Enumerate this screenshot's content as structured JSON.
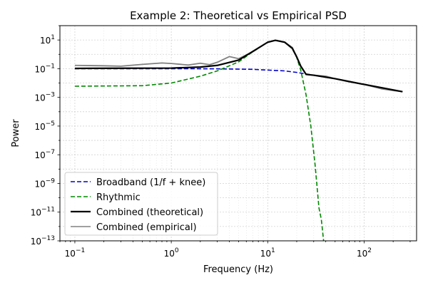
{
  "chart_data": {
    "type": "line",
    "title": "Example 2: Theoretical vs Empirical PSD",
    "xlabel": "Frequency (Hz)",
    "ylabel": "Power",
    "xscale": "log",
    "yscale": "log",
    "xlim": [
      0.07,
      350
    ],
    "ylim": [
      1e-13,
      100
    ],
    "x_ticks": [
      {
        "value": 0.1,
        "label": "10",
        "exp": "−1"
      },
      {
        "value": 1,
        "label": "10",
        "exp": "0"
      },
      {
        "value": 10,
        "label": "10",
        "exp": "1"
      },
      {
        "value": 100,
        "label": "10",
        "exp": "2"
      }
    ],
    "y_ticks": [
      {
        "value": 10,
        "label": "10",
        "exp": "1"
      },
      {
        "value": 0.1,
        "label": "10",
        "exp": "−1"
      },
      {
        "value": 0.001,
        "label": "10",
        "exp": "−3"
      },
      {
        "value": 1e-05,
        "label": "10",
        "exp": "−5"
      },
      {
        "value": 1e-07,
        "label": "10",
        "exp": "−7"
      },
      {
        "value": 1e-09,
        "label": "10",
        "exp": "−9"
      },
      {
        "value": 1e-11,
        "label": "10",
        "exp": "−11"
      },
      {
        "value": 1e-13,
        "label": "10",
        "exp": "−13"
      }
    ],
    "grid": true,
    "legend_position": "lower-left",
    "series": [
      {
        "name": "Broadband (1/f + knee)",
        "color": "#0000cc",
        "style": "dashed",
        "x": [
          0.1,
          0.3,
          1,
          3,
          7,
          15,
          20,
          30,
          50,
          100,
          250
        ],
        "y": [
          0.1,
          0.1,
          0.1,
          0.098,
          0.09,
          0.07,
          0.055,
          0.035,
          0.02,
          0.008,
          0.0025
        ]
      },
      {
        "name": "Rhythmic",
        "color": "#008800",
        "style": "dashed",
        "x": [
          0.1,
          0.5,
          1,
          2,
          3,
          5,
          7,
          10,
          12,
          15,
          18,
          20,
          22,
          25,
          28,
          31,
          34,
          36,
          38
        ],
        "y": [
          0.006,
          0.0065,
          0.01,
          0.03,
          0.07,
          0.3,
          1.5,
          7,
          9.5,
          7,
          2.5,
          0.6,
          0.08,
          0.0015,
          1e-05,
          2e-08,
          2e-11,
          3e-12,
          1e-13
        ]
      },
      {
        "name": "Combined (theoretical)",
        "color": "#000000",
        "style": "solid",
        "x": [
          0.1,
          1,
          2,
          3,
          5,
          7,
          10,
          12,
          15,
          18,
          20,
          22,
          25,
          30,
          50,
          100,
          250
        ],
        "y": [
          0.105,
          0.11,
          0.13,
          0.17,
          0.4,
          1.6,
          7,
          9.5,
          7,
          2.6,
          0.66,
          0.15,
          0.04,
          0.035,
          0.02,
          0.008,
          0.0025
        ]
      },
      {
        "name": "Combined (empirical)",
        "color": "#808080",
        "style": "solid",
        "x": [
          0.1,
          0.2,
          0.3,
          0.5,
          0.8,
          1,
          1.5,
          2,
          2.5,
          3,
          4,
          5,
          7,
          10,
          12,
          15,
          18,
          20,
          22,
          25,
          30,
          40,
          50,
          70,
          100,
          150,
          200,
          250
        ],
        "y": [
          0.17,
          0.16,
          0.15,
          0.2,
          0.25,
          0.23,
          0.18,
          0.24,
          0.19,
          0.28,
          0.7,
          0.5,
          1.5,
          7,
          9.5,
          7,
          3,
          0.65,
          0.16,
          0.04,
          0.035,
          0.03,
          0.02,
          0.012,
          0.008,
          0.004,
          0.003,
          0.0025
        ]
      }
    ]
  }
}
